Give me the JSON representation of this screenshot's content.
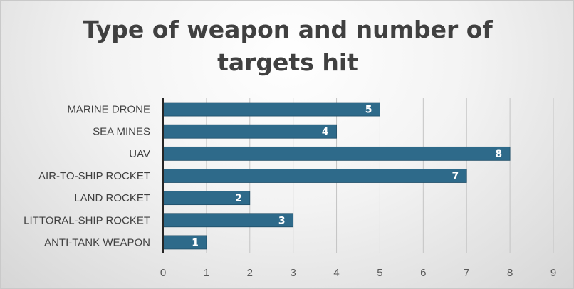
{
  "chart_data": {
    "type": "bar",
    "orientation": "horizontal",
    "title_line1": "Type of weapon and number of",
    "title_line2": "targets hit",
    "categories": [
      "MARINE DRONE",
      "SEA MINES",
      "UAV",
      "AIR-TO-SHIP ROCKET",
      "LAND ROCKET",
      "LITTORAL-SHIP ROCKET",
      "ANTI-TANK WEAPON"
    ],
    "values": [
      5,
      4,
      8,
      7,
      2,
      3,
      1
    ],
    "xlim": [
      0,
      9
    ],
    "xticks": [
      0,
      1,
      2,
      3,
      4,
      5,
      6,
      7,
      8,
      9
    ],
    "grid": "vertical",
    "data_labels": "inside-end",
    "xlabel": "",
    "ylabel": ""
  },
  "colors": {
    "bar": "#2e6a8a",
    "bar_stroke": "#1f4e68",
    "grid": "#c4c4c4",
    "axis": "#262626",
    "title": "#404040"
  }
}
